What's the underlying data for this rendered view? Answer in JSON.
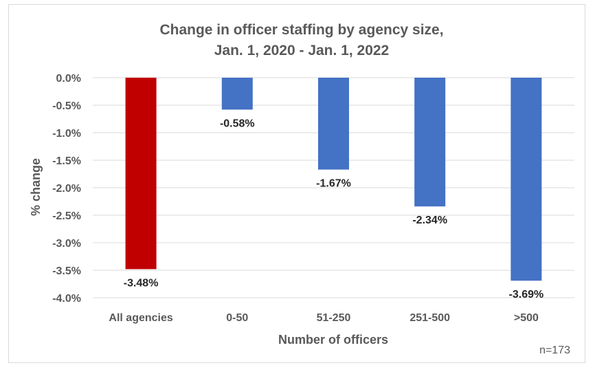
{
  "chart_data": {
    "type": "bar",
    "title_lines": [
      "Change in officer staffing by agency size,",
      "Jan. 1, 2020 - Jan. 1, 2022"
    ],
    "xlabel": "Number of officers",
    "ylabel": "% change",
    "categories": [
      "All agencies",
      "0-50",
      "51-250",
      "251-500",
      ">500"
    ],
    "values": [
      -3.48,
      -0.58,
      -1.67,
      -2.34,
      -3.69
    ],
    "data_labels": [
      "-3.48%",
      "-0.58%",
      "-1.67%",
      "-2.34%",
      "-3.69%"
    ],
    "bar_colors": [
      "#c00000",
      "#4472c4",
      "#4472c4",
      "#4472c4",
      "#4472c4"
    ],
    "ylim": [
      -4.0,
      0.0
    ],
    "yticks": [
      0.0,
      -0.5,
      -1.0,
      -1.5,
      -2.0,
      -2.5,
      -3.0,
      -3.5,
      -4.0
    ],
    "ytick_labels": [
      "0.0%",
      "-0.5%",
      "-1.0%",
      "-1.5%",
      "-2.0%",
      "-2.5%",
      "-3.0%",
      "-3.5%",
      "-4.0%"
    ],
    "grid": true,
    "legend": "none",
    "note": "n=173"
  }
}
